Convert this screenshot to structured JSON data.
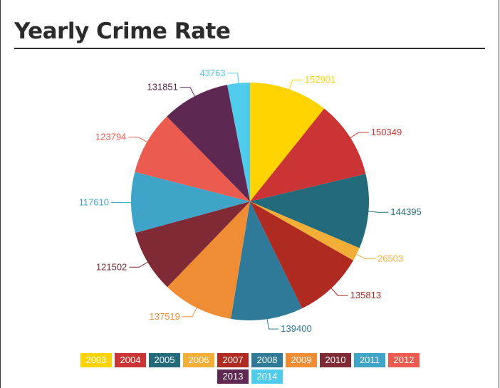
{
  "chart_data": {
    "type": "pie",
    "title": "Yearly Crime Rate",
    "categories": [
      "2003",
      "2004",
      "2005",
      "2006",
      "2007",
      "2008",
      "2009",
      "2010",
      "2011",
      "2012",
      "2013",
      "2014"
    ],
    "values": [
      152901,
      150349,
      144395,
      26503,
      135813,
      139400,
      137519,
      121502,
      117610,
      123794,
      131851,
      43763
    ],
    "colors": [
      "#FFD300",
      "#CB3434",
      "#236A7B",
      "#F2AE36",
      "#AF2A20",
      "#2E7A98",
      "#F08C34",
      "#7F2A34",
      "#40A3C8",
      "#EB5B50",
      "#5E2852",
      "#4FCBEB"
    ],
    "legend": "bottom"
  }
}
